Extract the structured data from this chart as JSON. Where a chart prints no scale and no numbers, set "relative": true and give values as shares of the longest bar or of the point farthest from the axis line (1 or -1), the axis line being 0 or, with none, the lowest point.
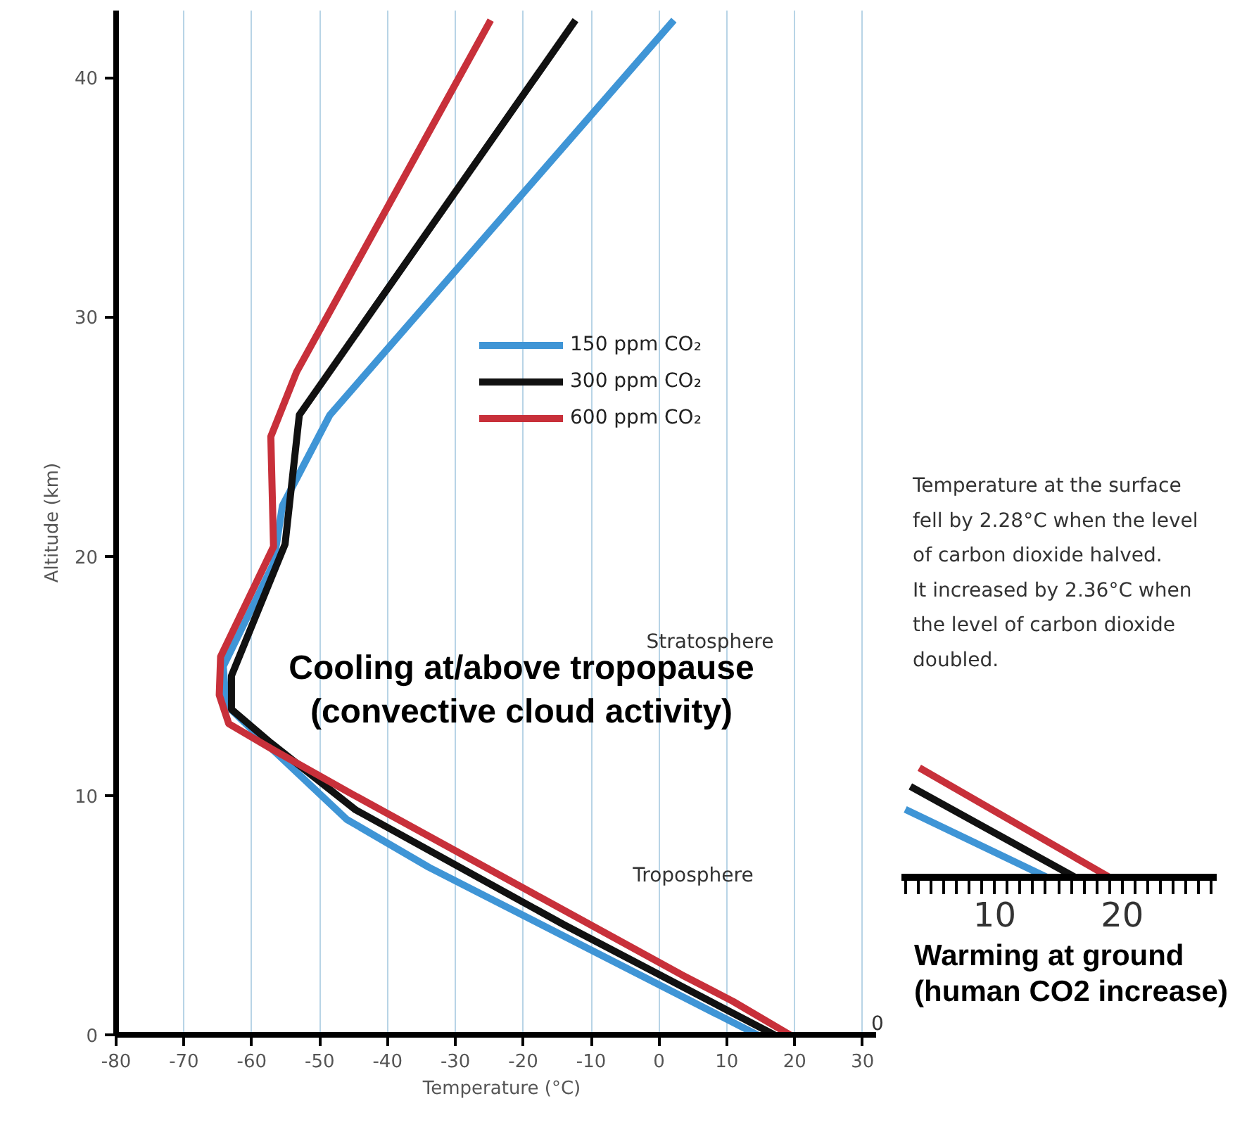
{
  "chart_data": [
    {
      "type": "line",
      "xlabel": "Temperature (°C)",
      "ylabel": "Altitude (km)",
      "xlim": [
        -80,
        32
      ],
      "ylim": [
        0,
        42.8
      ],
      "xticks": [
        -80,
        -70,
        -60,
        -50,
        -40,
        -30,
        -20,
        -10,
        0,
        10,
        20,
        30
      ],
      "yticks": [
        0,
        10,
        20,
        30,
        40
      ],
      "grid": "x",
      "legend": "center",
      "line_style": "solid",
      "marker": "none",
      "series": [
        {
          "name": "150 ppm CO₂",
          "color": "#3f95d6",
          "x": [
            14.5,
            -33.9,
            -46.0,
            -58.0,
            -63.8,
            -64.2,
            -56.8,
            -55.5,
            -48.5,
            2.2
          ],
          "values": [
            0,
            7.0,
            9.0,
            12.2,
            13.8,
            15.4,
            19.7,
            22.1,
            25.9,
            42.4
          ]
        },
        {
          "name": "300 ppm CO₂",
          "color": "#111111",
          "x": [
            17.0,
            -14.0,
            -44.7,
            -57.2,
            -63.0,
            -63.0,
            -55.1,
            -53.0,
            -12.3
          ],
          "values": [
            0,
            4.6,
            9.4,
            12.2,
            13.6,
            15.0,
            20.5,
            25.9,
            42.4
          ]
        },
        {
          "name": "600 ppm CO₂",
          "color": "#c8303a",
          "x": [
            19.3,
            10.9,
            3.4,
            -45.5,
            -56.8,
            -63.4,
            -64.8,
            -64.6,
            -56.8,
            -57.2,
            -53.4,
            -24.8
          ],
          "values": [
            0,
            1.4,
            2.5,
            10.1,
            11.9,
            13.0,
            14.2,
            15.8,
            20.4,
            25.0,
            27.7,
            42.4
          ]
        }
      ],
      "annotations": [
        "Stratosphere",
        "Cooling at/above tropopause\n(convective cloud activity)",
        "Troposphere",
        "Warming at ground\n(human CO2 increase)",
        "Temperature at the surface\nfell by 2.28°C when the level\nof carbon dioxide halved.\nIt increased by 2.36°C when\nthe level of carbon dioxide\ndoubled.",
        "0"
      ]
    },
    {
      "type": "line",
      "relative": true,
      "xlim": [
        2.7,
        27.4
      ],
      "tick_labels": "x",
      "xticks": [
        {
          "value": 3,
          "label": null
        },
        {
          "value": 4,
          "label": null
        },
        {
          "value": 5,
          "label": null
        },
        {
          "value": 6,
          "label": null
        },
        {
          "value": 7,
          "label": null
        },
        {
          "value": 8,
          "label": null
        },
        {
          "value": 9,
          "label": null
        },
        10,
        {
          "value": 11,
          "label": null
        },
        {
          "value": 12,
          "label": null
        },
        {
          "value": 13,
          "label": null
        },
        {
          "value": 14,
          "label": null
        },
        {
          "value": 15,
          "label": null
        },
        {
          "value": 16,
          "label": null
        },
        {
          "value": 17,
          "label": null
        },
        {
          "value": 18,
          "label": null
        },
        {
          "value": 19,
          "label": null
        },
        20,
        {
          "value": 21,
          "label": null
        },
        {
          "value": 22,
          "label": null
        },
        {
          "value": 23,
          "label": null
        },
        {
          "value": 24,
          "label": null
        },
        {
          "value": 25,
          "label": null
        },
        {
          "value": 26,
          "label": null
        },
        {
          "value": 27,
          "label": null
        }
      ],
      "series": [
        {
          "color": "#3f95d6",
          "x": [
            3.0,
            14.1
          ],
          "values": [
            0.62,
            0
          ]
        },
        {
          "color": "#111111",
          "x": [
            3.4,
            16.3
          ],
          "values": [
            0.83,
            0
          ]
        },
        {
          "color": "#c8303a",
          "x": [
            4.1,
            19.0
          ],
          "values": [
            1,
            0
          ]
        }
      ]
    }
  ]
}
